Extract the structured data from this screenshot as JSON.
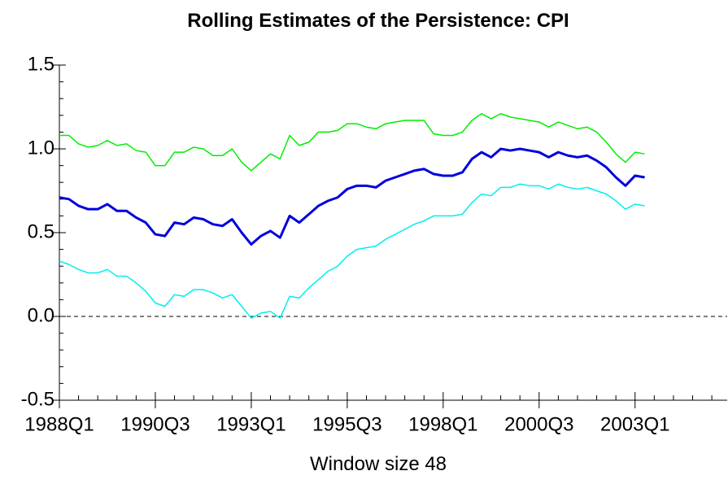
{
  "chart_data": {
    "type": "line",
    "title": "Rolling Estimates of the Persistence: CPI",
    "x_label": "Window size 48",
    "x": [
      1988,
      1988.25,
      1988.5,
      1988.75,
      1989,
      1989.25,
      1989.5,
      1989.75,
      1990,
      1990.25,
      1990.5,
      1990.75,
      1991,
      1991.25,
      1991.5,
      1991.75,
      1992,
      1992.25,
      1992.5,
      1992.75,
      1993,
      1993.25,
      1993.5,
      1993.75,
      1994,
      1994.25,
      1994.5,
      1994.75,
      1995,
      1995.25,
      1995.5,
      1995.75,
      1996,
      1996.25,
      1996.5,
      1996.75,
      1997,
      1997.25,
      1997.5,
      1997.75,
      1998,
      1998.25,
      1998.5,
      1998.75,
      1999,
      1999.25,
      1999.5,
      1999.75,
      2000,
      2000.25,
      2000.5,
      2000.75,
      2001,
      2001.25,
      2001.5,
      2001.75,
      2002,
      2002.25,
      2002.5,
      2002.75,
      2003,
      2003.25
    ],
    "series": [
      {
        "color": "#00ee00",
        "width": 1.5,
        "values": [
          1.08,
          1.08,
          1.03,
          1.01,
          1.02,
          1.05,
          1.02,
          1.03,
          0.99,
          0.98,
          0.9,
          0.9,
          0.98,
          0.98,
          1.01,
          1.0,
          0.96,
          0.96,
          1.0,
          0.92,
          0.87,
          0.92,
          0.97,
          0.94,
          1.08,
          1.02,
          1.04,
          1.1,
          1.1,
          1.11,
          1.15,
          1.15,
          1.13,
          1.12,
          1.15,
          1.16,
          1.17,
          1.17,
          1.17,
          1.09,
          1.08,
          1.08,
          1.1,
          1.17,
          1.21,
          1.18,
          1.21,
          1.19,
          1.18,
          1.17,
          1.16,
          1.13,
          1.16,
          1.14,
          1.12,
          1.13,
          1.1,
          1.04,
          0.97,
          0.92,
          0.98,
          0.97
        ]
      },
      {
        "color": "#0000dd",
        "width": 3,
        "values": [
          0.71,
          0.7,
          0.66,
          0.64,
          0.64,
          0.67,
          0.63,
          0.63,
          0.59,
          0.56,
          0.49,
          0.48,
          0.56,
          0.55,
          0.59,
          0.58,
          0.55,
          0.54,
          0.58,
          0.5,
          0.43,
          0.48,
          0.51,
          0.47,
          0.6,
          0.56,
          0.61,
          0.66,
          0.69,
          0.71,
          0.76,
          0.78,
          0.78,
          0.77,
          0.81,
          0.83,
          0.85,
          0.87,
          0.88,
          0.85,
          0.84,
          0.84,
          0.86,
          0.94,
          0.98,
          0.95,
          1.0,
          0.99,
          1.0,
          0.99,
          0.98,
          0.95,
          0.98,
          0.96,
          0.95,
          0.96,
          0.93,
          0.89,
          0.83,
          0.78,
          0.84,
          0.83
        ]
      },
      {
        "color": "#00eeee",
        "width": 1.5,
        "values": [
          0.33,
          0.31,
          0.28,
          0.26,
          0.26,
          0.28,
          0.24,
          0.24,
          0.2,
          0.15,
          0.08,
          0.06,
          0.13,
          0.12,
          0.16,
          0.16,
          0.14,
          0.11,
          0.13,
          0.06,
          -0.01,
          0.02,
          0.03,
          -0.01,
          0.12,
          0.11,
          0.17,
          0.22,
          0.27,
          0.3,
          0.36,
          0.4,
          0.41,
          0.42,
          0.46,
          0.49,
          0.52,
          0.55,
          0.57,
          0.6,
          0.6,
          0.6,
          0.61,
          0.68,
          0.73,
          0.72,
          0.77,
          0.77,
          0.79,
          0.78,
          0.78,
          0.76,
          0.79,
          0.77,
          0.76,
          0.77,
          0.75,
          0.73,
          0.69,
          0.64,
          0.67,
          0.66
        ]
      }
    ],
    "xlim": [
      1988,
      2005.4
    ],
    "ylim": [
      -0.5,
      1.5
    ],
    "xticks": [
      {
        "value": 1988,
        "label": "1988Q1"
      },
      {
        "value": 1990.5,
        "label": "1990Q3"
      },
      {
        "value": 1993,
        "label": "1993Q1"
      },
      {
        "value": 1995.5,
        "label": "1995Q3"
      },
      {
        "value": 1998,
        "label": "1998Q1"
      },
      {
        "value": 2000.5,
        "label": "2000Q3"
      },
      {
        "value": 2003,
        "label": "2003Q1"
      }
    ],
    "xminorticks": [
      1988.5,
      1989,
      1989.5,
      1990,
      1991,
      1991.5,
      1992,
      1992.5,
      1993.5,
      1994,
      1994.5,
      1995,
      1996,
      1996.5,
      1997,
      1997.5,
      1998.5,
      1999,
      1999.5,
      2000,
      2001,
      2001.5,
      2002,
      2002.5,
      2003.5,
      2004,
      2004.5,
      2005
    ],
    "yticks": [
      1.5,
      {
        "value": 1.0,
        "label": "1.0"
      },
      0.5,
      {
        "value": 0.0,
        "label": "0.0"
      },
      -0.5
    ],
    "yminorticks": [
      1.4,
      1.3,
      1.2,
      1.1,
      0.9,
      0.8,
      0.7,
      0.6,
      0.4,
      0.3,
      0.2,
      0.1,
      -0.1,
      -0.2,
      -0.3,
      -0.4
    ],
    "hline": 0,
    "grid": false
  }
}
